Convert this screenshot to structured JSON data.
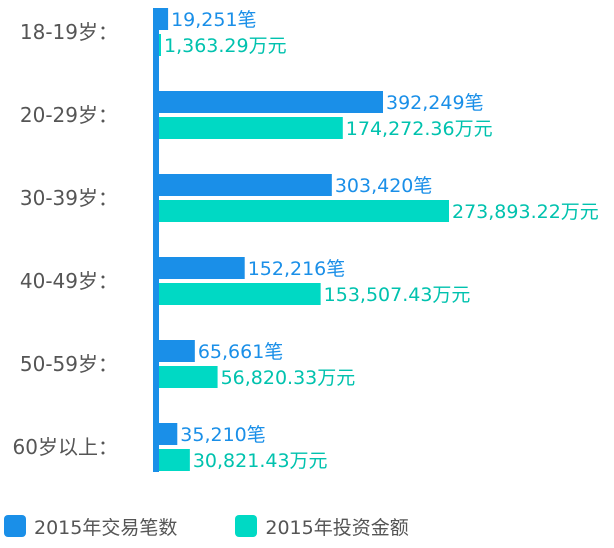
{
  "colors": {
    "count": "#1a8fe8",
    "amount": "#00d9c4",
    "axis": "#1a8fe8",
    "text": "#555555"
  },
  "chart_data": {
    "type": "bar",
    "orientation": "horizontal",
    "categories": [
      "18-19岁：",
      "20-29岁：",
      "30-39岁：",
      "40-49岁：",
      "50-59岁：",
      "60岁以上："
    ],
    "series": [
      {
        "name": "2015年交易笔数",
        "values": [
          19251,
          392249,
          303420,
          152216,
          65661,
          35210
        ],
        "labels": [
          "19,251笔",
          "392,249笔",
          "303,420笔",
          "152,216笔",
          "65,661笔",
          "35,210笔"
        ]
      },
      {
        "name": "2015年投资金额",
        "values": [
          1363.29,
          174272.36,
          273893.22,
          153507.43,
          56820.33,
          30821.43
        ],
        "labels": [
          "1,363.29万元",
          "174,272.36万元",
          "273,893.22万元",
          "153,507.43万元",
          "56,820.33万元",
          "30,821.43万元"
        ]
      }
    ],
    "legend_position": "bottom-left",
    "grid": false
  }
}
